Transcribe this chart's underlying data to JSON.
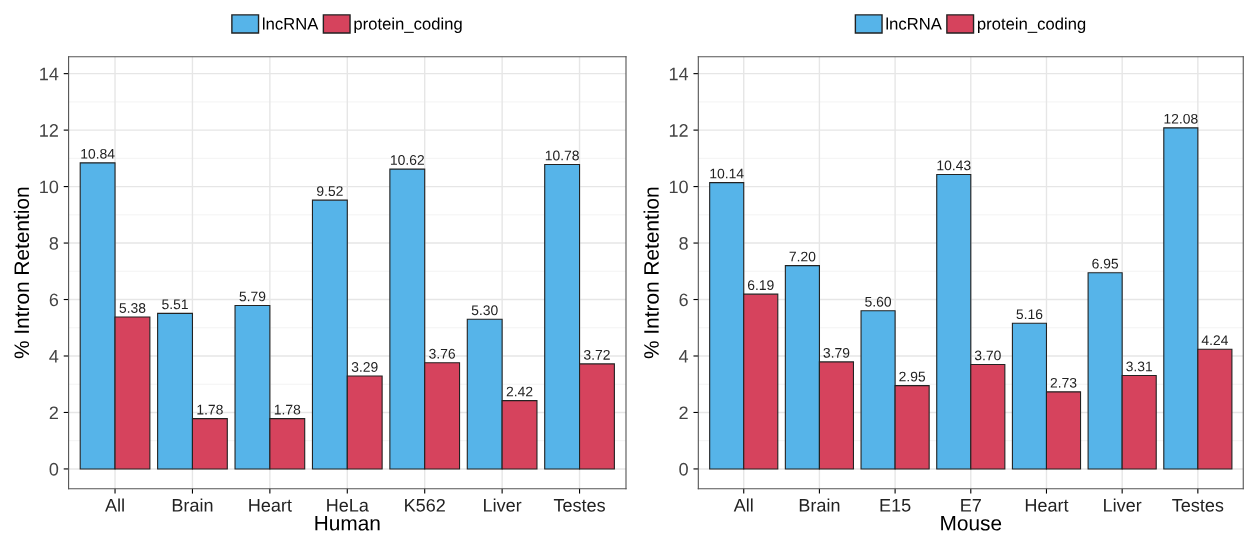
{
  "chart_data": [
    {
      "type": "bar",
      "xlabel": "Human",
      "ylabel": "% Intron Retention",
      "categories": [
        "All",
        "Brain",
        "Heart",
        "HeLa",
        "K562",
        "Liver",
        "Testes"
      ],
      "series": [
        {
          "name": "lncRNA",
          "color": "#56b4e9",
          "values": [
            10.84,
            5.51,
            5.79,
            9.52,
            10.62,
            5.3,
            10.78
          ]
        },
        {
          "name": "protein_coding",
          "color": "#d6435d",
          "values": [
            5.38,
            1.78,
            1.78,
            3.29,
            3.76,
            2.42,
            3.72
          ]
        }
      ],
      "value_labels": [
        [
          "10.84",
          "5.51",
          "5.79",
          "9.52",
          "10.62",
          "5.30",
          "10.78"
        ],
        [
          "5.38",
          "1.78",
          "1.78",
          "3.29",
          "3.76",
          "2.42",
          "3.72"
        ]
      ],
      "ylim": [
        -0.7,
        14.6
      ],
      "yticks": [
        0,
        2,
        4,
        6,
        8,
        10,
        12,
        14
      ],
      "grid": true,
      "legend": "top"
    },
    {
      "type": "bar",
      "xlabel": "Mouse",
      "ylabel": "% Intron Retention",
      "categories": [
        "All",
        "Brain",
        "E15",
        "E7",
        "Heart",
        "Liver",
        "Testes"
      ],
      "series": [
        {
          "name": "lncRNA",
          "color": "#56b4e9",
          "values": [
            10.14,
            7.2,
            5.6,
            10.43,
            5.16,
            6.95,
            12.08
          ]
        },
        {
          "name": "protein_coding",
          "color": "#d6435d",
          "values": [
            6.19,
            3.79,
            2.95,
            3.7,
            2.73,
            3.31,
            4.24
          ]
        }
      ],
      "value_labels": [
        [
          "10.14",
          "7.20",
          "5.60",
          "10.43",
          "5.16",
          "6.95",
          "12.08"
        ],
        [
          "6.19",
          "3.79",
          "2.95",
          "3.70",
          "2.73",
          "3.31",
          "4.24"
        ]
      ],
      "ylim": [
        -0.7,
        14.6
      ],
      "yticks": [
        0,
        2,
        4,
        6,
        8,
        10,
        12,
        14
      ],
      "grid": true,
      "legend": "top"
    }
  ]
}
